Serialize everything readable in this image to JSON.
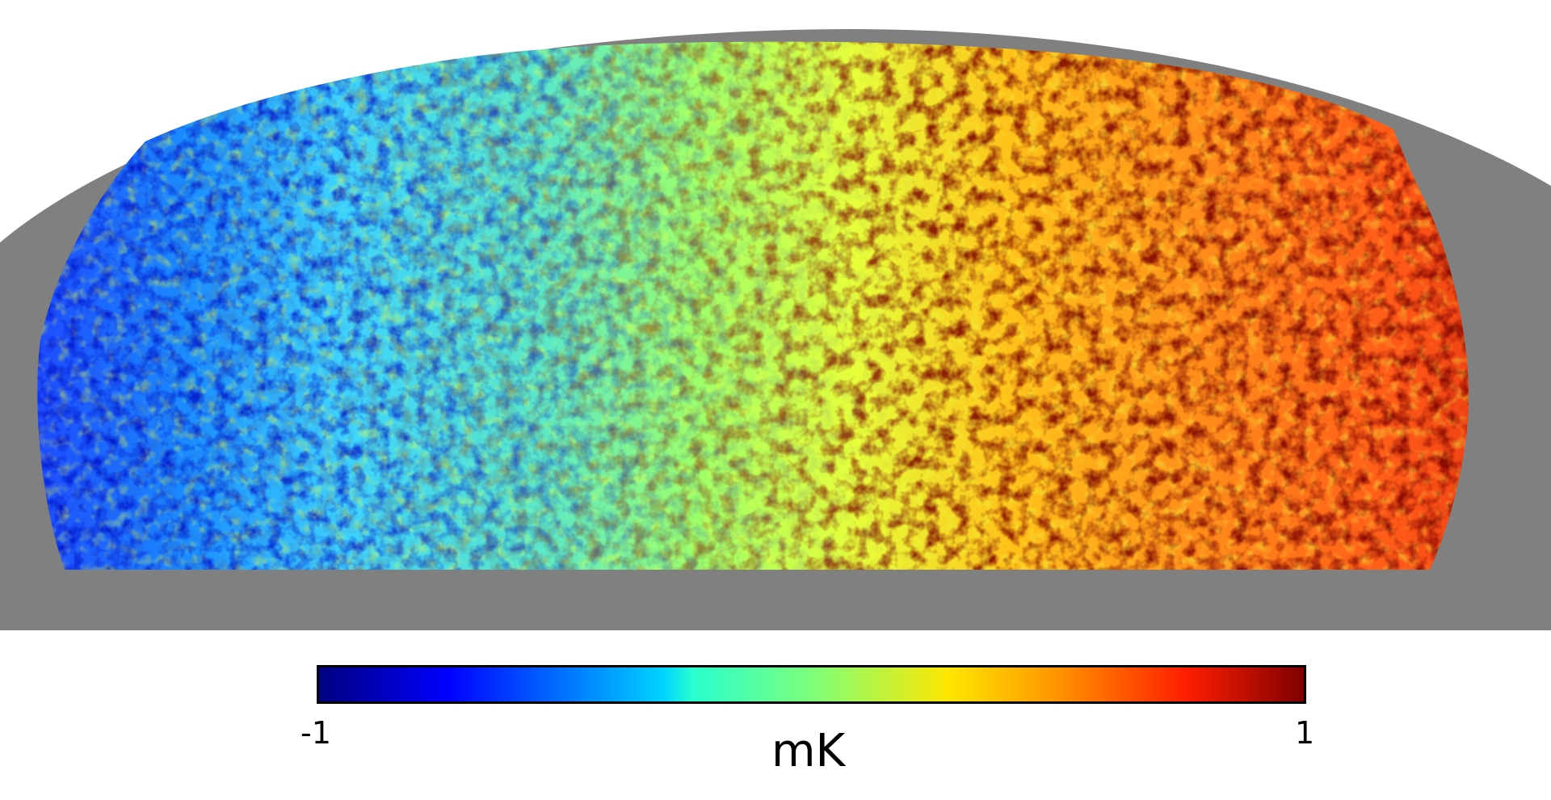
{
  "map": {
    "projection": "mollweide-partial-sky",
    "colormap": "jet",
    "mask_color": "#808080",
    "background_color": "#ffffff",
    "dominant_regions": [
      {
        "region": "left",
        "tone": "blue"
      },
      {
        "region": "center",
        "tone": "cyan-green"
      },
      {
        "region": "right",
        "tone": "orange-red"
      }
    ]
  },
  "colorbar": {
    "min_label": "-1",
    "max_label": "1",
    "unit": "mK",
    "min_value": -1,
    "max_value": 1,
    "stops": [
      {
        "offset": 0.0,
        "color": "#00007f"
      },
      {
        "offset": 0.13,
        "color": "#0000ff"
      },
      {
        "offset": 0.35,
        "color": "#00d4ff"
      },
      {
        "offset": 0.38,
        "color": "#29ffce"
      },
      {
        "offset": 0.5,
        "color": "#7dff7a"
      },
      {
        "offset": 0.64,
        "color": "#ffe600"
      },
      {
        "offset": 0.75,
        "color": "#ff9400"
      },
      {
        "offset": 0.88,
        "color": "#ff1e00"
      },
      {
        "offset": 1.0,
        "color": "#7f0000"
      }
    ]
  }
}
